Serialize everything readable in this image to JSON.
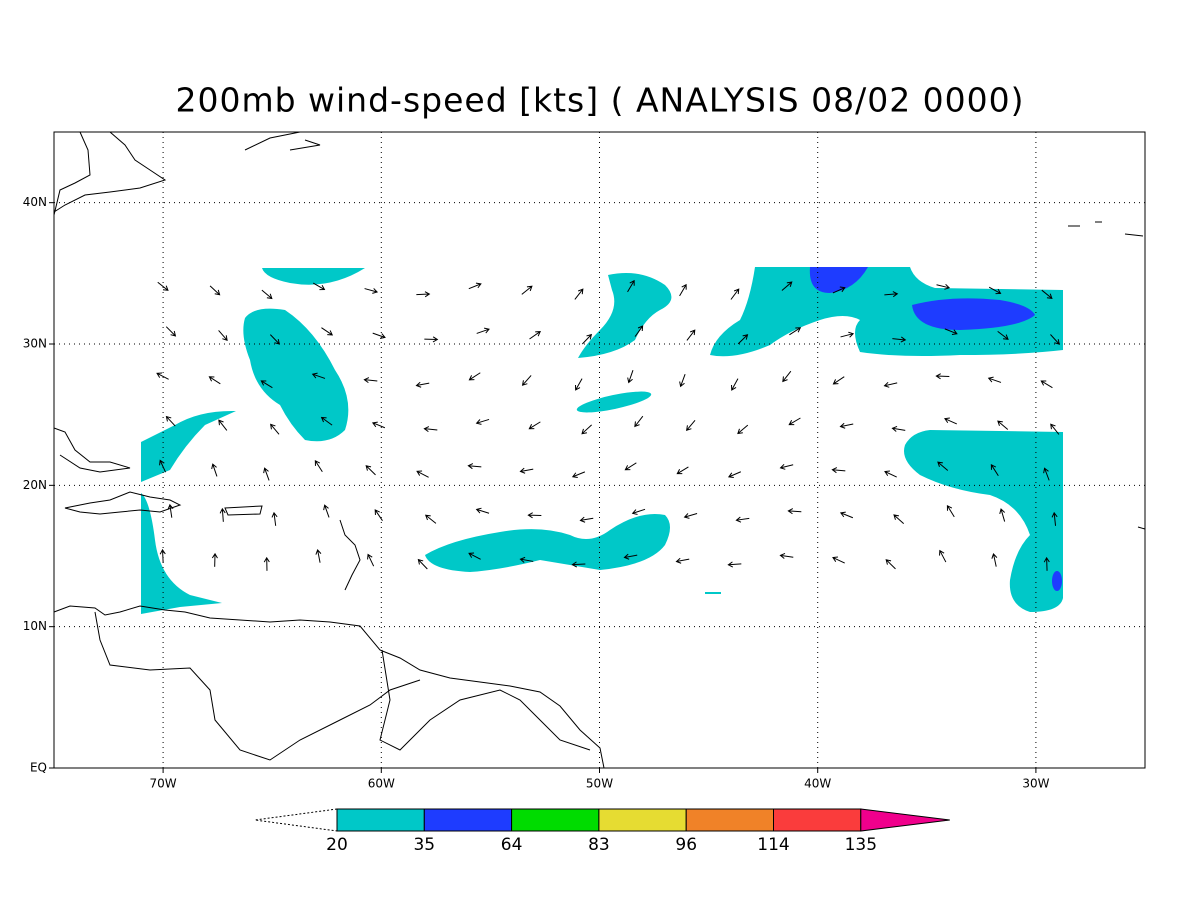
{
  "title": "200mb wind-speed [kts] ( ANALYSIS 08/02 0000)",
  "lon_ticks": [
    {
      "value": -70,
      "label": "70W"
    },
    {
      "value": -60,
      "label": "60W"
    },
    {
      "value": -50,
      "label": "50W"
    },
    {
      "value": -40,
      "label": "40W"
    },
    {
      "value": -30,
      "label": "30W"
    }
  ],
  "lat_ticks": [
    {
      "value": 0,
      "label": "EQ"
    },
    {
      "value": 10,
      "label": "10N"
    },
    {
      "value": 20,
      "label": "20N"
    },
    {
      "value": 30,
      "label": "30N"
    },
    {
      "value": 40,
      "label": "40N"
    }
  ],
  "lon_range": [
    -75,
    -25
  ],
  "lat_range": [
    0,
    45
  ],
  "colorbar": {
    "levels": [
      20,
      35,
      64,
      83,
      96,
      114,
      135
    ],
    "colors": [
      "#00c8c8",
      "#1e3cff",
      "#00dc00",
      "#e6dc32",
      "#f08228",
      "#fa3c3c",
      "#f0008c"
    ]
  }
}
